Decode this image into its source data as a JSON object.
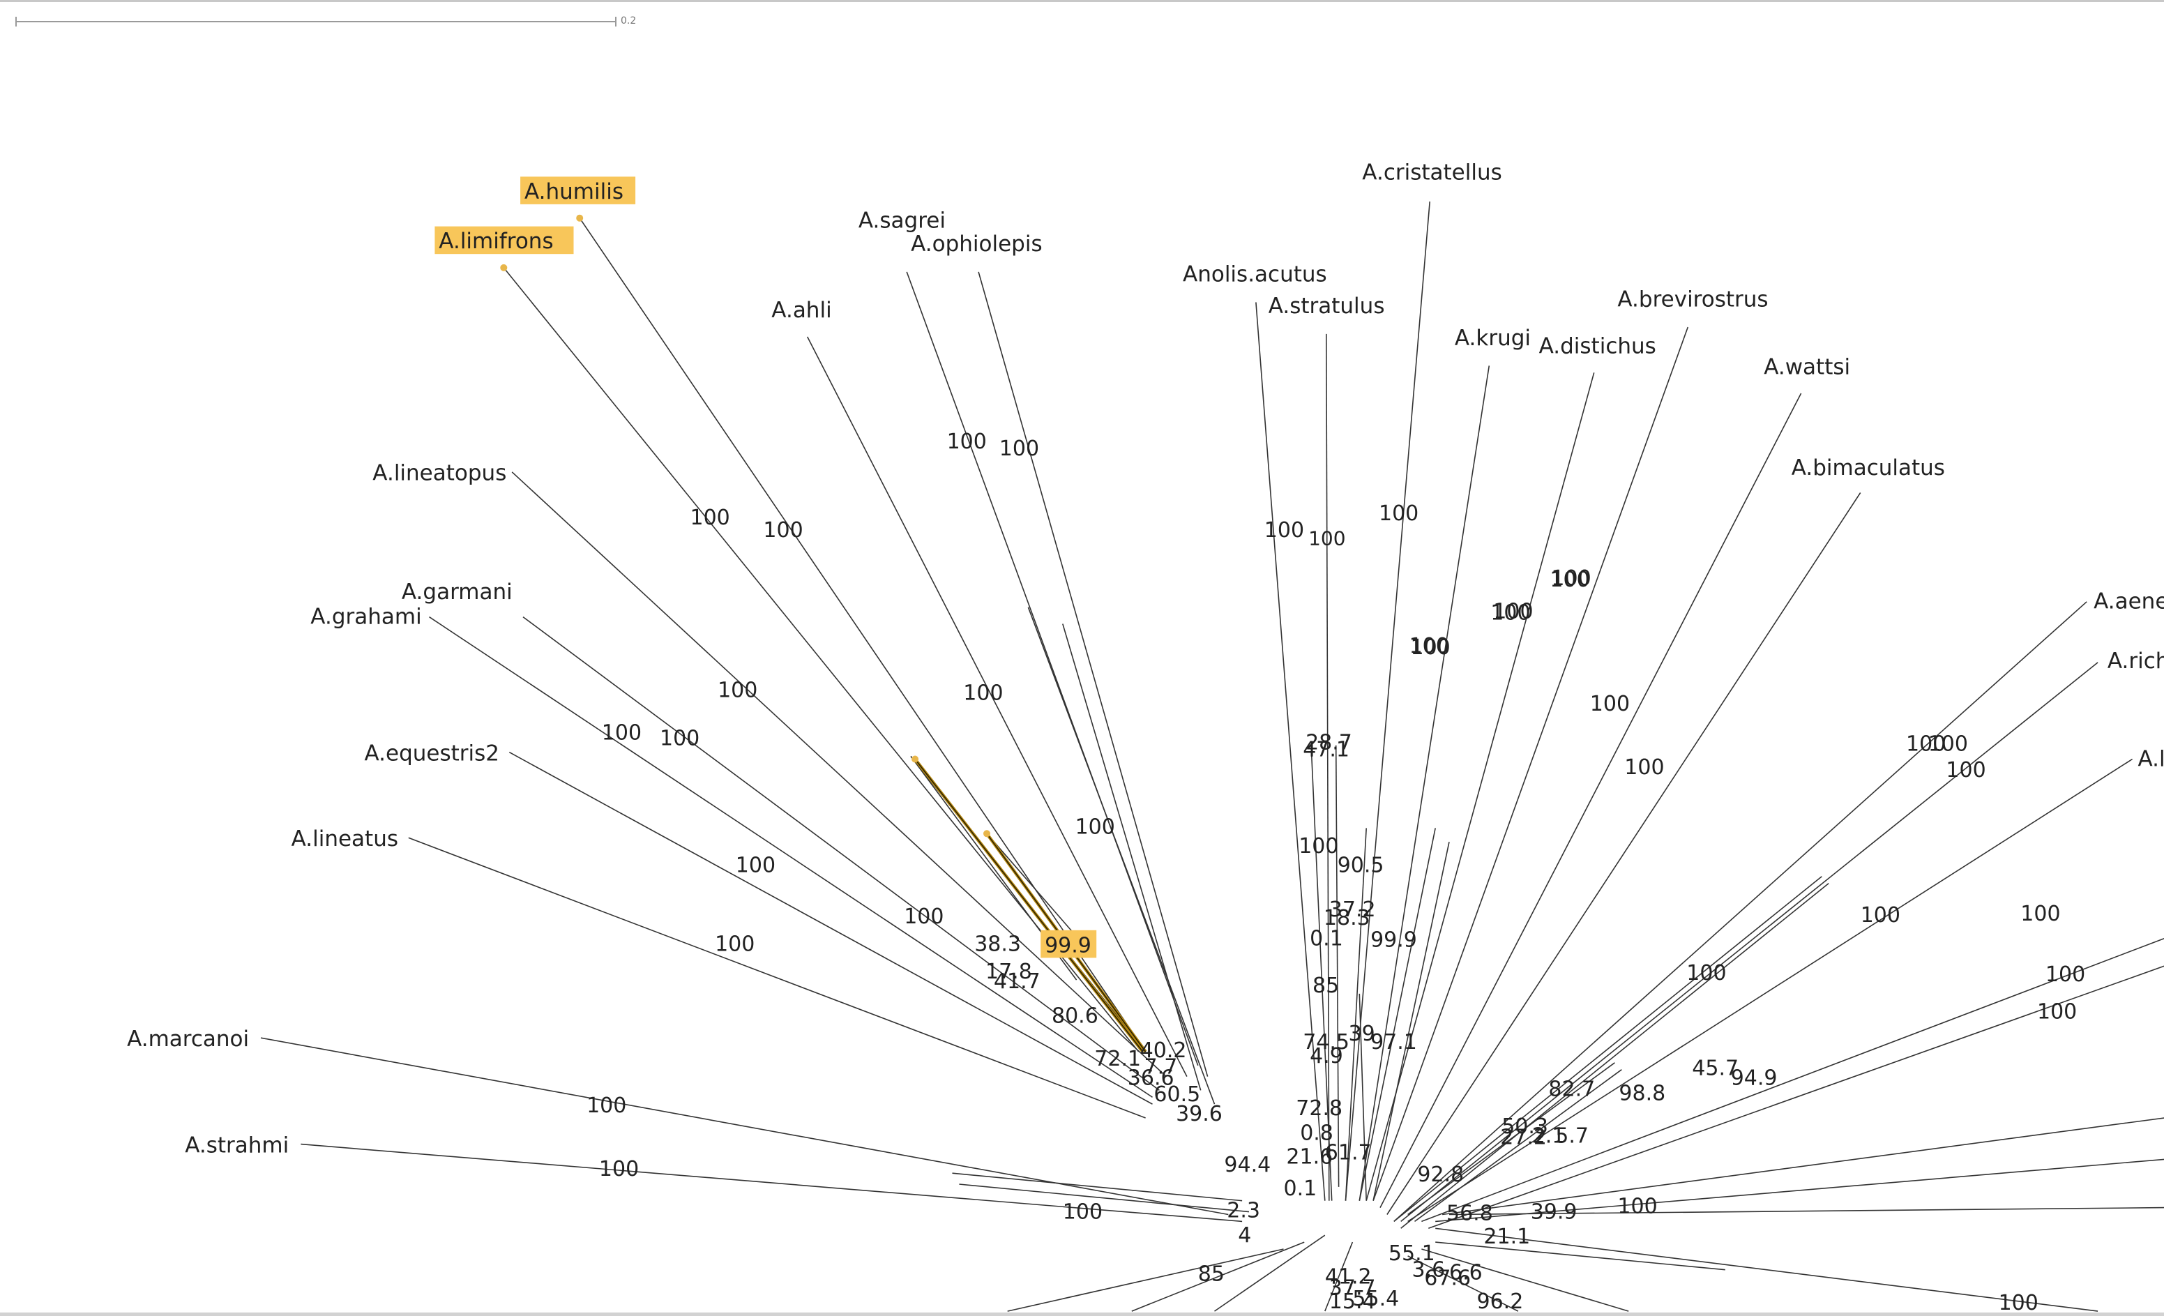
{
  "scale_bar": {
    "label": "0.2"
  },
  "highlighted_support": "99.9",
  "taxa": [
    {
      "name": "A.humilis",
      "highlighted": true
    },
    {
      "name": "A.limifrons",
      "highlighted": true
    },
    {
      "name": "A.sagrei"
    },
    {
      "name": "A.ophiolepis"
    },
    {
      "name": "A.ahli"
    },
    {
      "name": "A.lineatopus"
    },
    {
      "name": "A.garmani"
    },
    {
      "name": "A.grahami"
    },
    {
      "name": "A.equestris2"
    },
    {
      "name": "A.lineatus"
    },
    {
      "name": "A.marcanoi"
    },
    {
      "name": "A.strahmi"
    },
    {
      "name": "A.cristatellus"
    },
    {
      "name": "Anolis.acutus"
    },
    {
      "name": "A.stratulus"
    },
    {
      "name": "A.krugi"
    },
    {
      "name": "A.distichus"
    },
    {
      "name": "A.brevirostrus"
    },
    {
      "name": "A.wattsi"
    },
    {
      "name": "A.bimaculatus"
    },
    {
      "name": "A.aene"
    },
    {
      "name": "A.rich"
    },
    {
      "name": "A.l"
    }
  ],
  "support_values": [
    "100",
    "100",
    "100",
    "100",
    "100",
    "100",
    "100",
    "100",
    "100",
    "100",
    "100",
    "100",
    "100",
    "100",
    "100",
    "100",
    "100",
    "100",
    "100",
    "100",
    "100",
    "100",
    "100",
    "100",
    "100",
    "100",
    "100",
    "100",
    "100",
    "100",
    "100",
    "100",
    "100",
    "100",
    "100",
    "100",
    "100",
    "38.3",
    "17.8",
    "41.7",
    "80.6",
    "40.2",
    "72.1",
    "7.7",
    "36.6",
    "60.5",
    "39.6",
    "94.4",
    "2.3",
    "4",
    "0.1",
    "28.7",
    "47.1",
    "90.5",
    "37.2",
    "18.3",
    "0.1",
    "99.9",
    "85",
    "74.5",
    "39",
    "97.1",
    "4.9",
    "72.8",
    "0.8",
    "21.6",
    "61.7",
    "92.8",
    "82.7",
    "98.8",
    "45.7",
    "94.9",
    "50.3",
    "27.2",
    "2.1",
    "5.7",
    "56.8",
    "39.9",
    "21.1",
    "55.1",
    "3.6",
    "6.6",
    "67.6",
    "96.2",
    "85",
    "15.4",
    "41.2",
    "37.7",
    "55.4"
  ]
}
